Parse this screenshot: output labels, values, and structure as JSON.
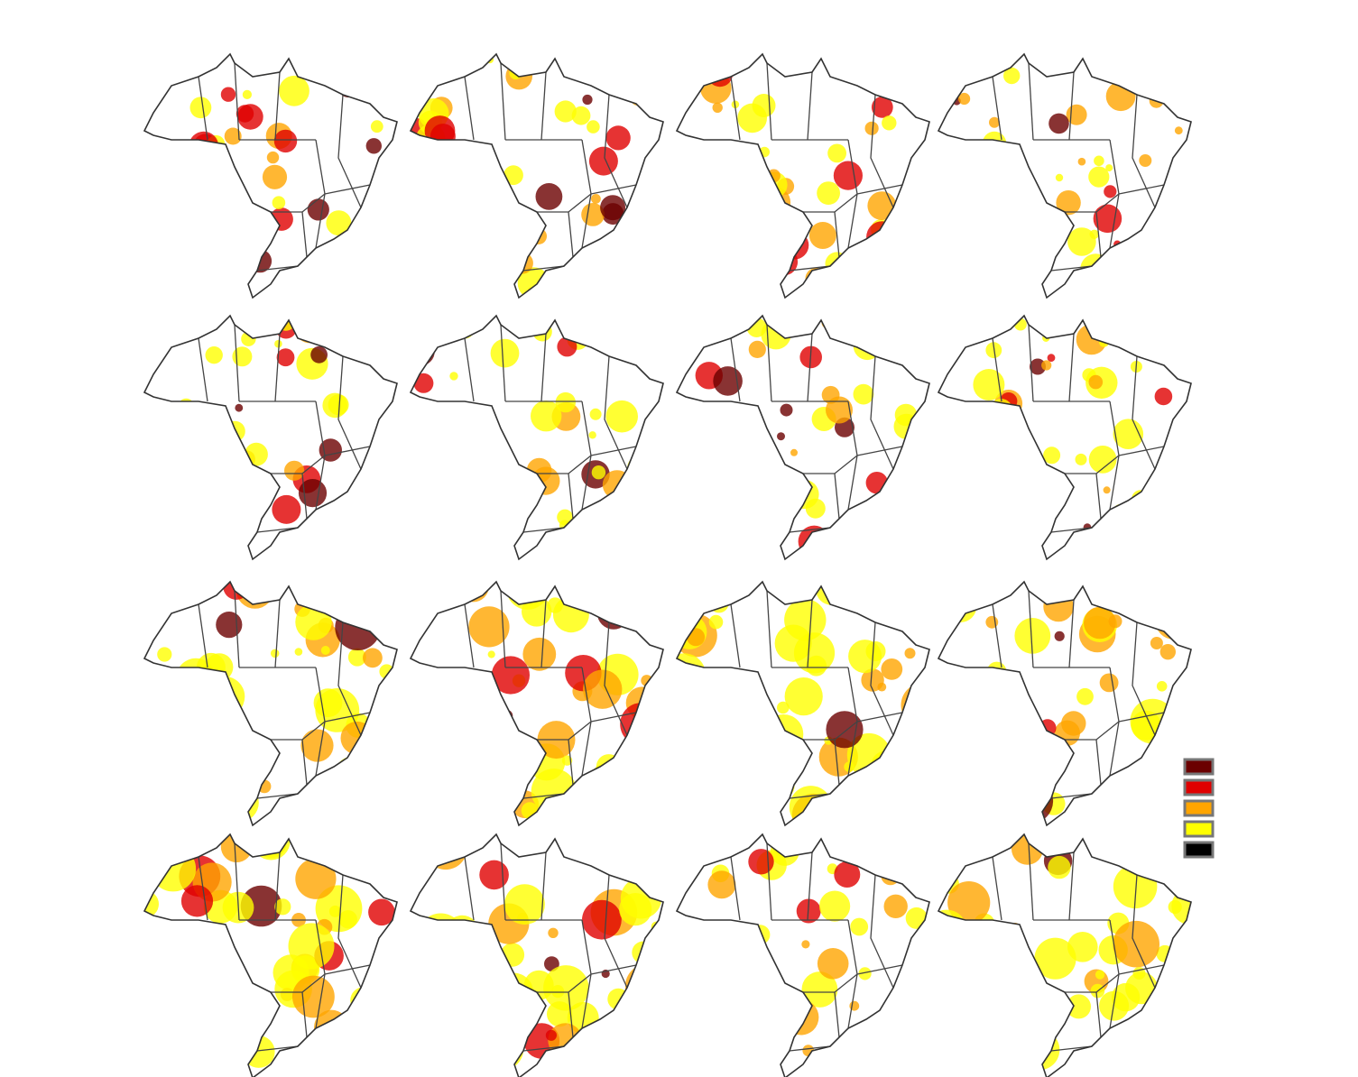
{
  "legend": {
    "colors": [
      "#6b0000",
      "#e00000",
      "#ffa500",
      "#ffff00",
      "#000000"
    ]
  }
}
